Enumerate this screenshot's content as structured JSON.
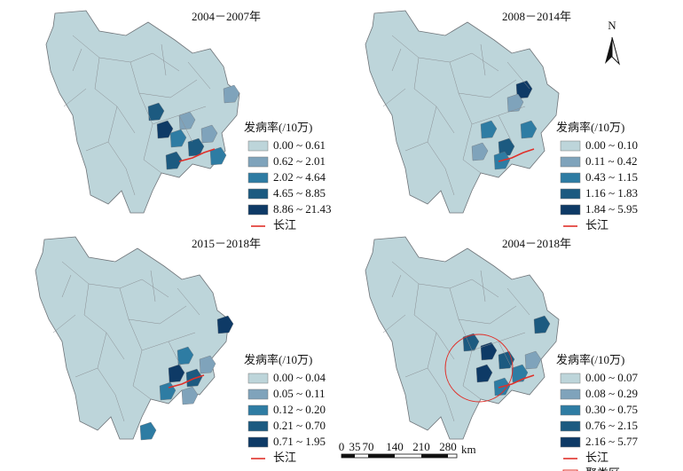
{
  "panels": [
    {
      "title": "2004－2007年",
      "legend": {
        "title": "发病率(/10万)",
        "items": [
          "0.00 ~ 0.61",
          "0.62 ~ 2.01",
          "2.02 ~ 4.64",
          "4.65 ~ 8.85",
          "8.86 ~ 21.43"
        ],
        "river": "长江"
      }
    },
    {
      "title": "2008－2014年",
      "legend": {
        "title": "发病率(/10万)",
        "items": [
          "0.00 ~ 0.10",
          "0.11 ~ 0.42",
          "0.43 ~ 1.15",
          "1.16 ~ 1.83",
          "1.84 ~ 5.95"
        ],
        "river": "长江"
      }
    },
    {
      "title": "2015－2018年",
      "legend": {
        "title": "发病率(/10万)",
        "items": [
          "0.00 ~ 0.04",
          "0.05 ~ 0.11",
          "0.12 ~ 0.20",
          "0.21 ~ 0.70",
          "0.71 ~ 1.95"
        ],
        "river": "长江"
      }
    },
    {
      "title": "2004－2018年",
      "legend": {
        "title": "发病率(/10万)",
        "items": [
          "0.00 ~ 0.07",
          "0.08 ~ 0.29",
          "0.30 ~ 0.75",
          "0.76 ~ 2.15",
          "2.16 ~ 5.77"
        ],
        "river": "长江",
        "cluster": "聚类区"
      }
    }
  ],
  "colors": [
    "#bdd5da",
    "#7fa3bb",
    "#2e7ca3",
    "#1c5a80",
    "#0e3a66"
  ],
  "river_color": "#e0302a",
  "north": "N",
  "scale": {
    "ticks": [
      "0",
      "35",
      "70",
      "140",
      "210",
      "280"
    ],
    "unit": "km"
  }
}
